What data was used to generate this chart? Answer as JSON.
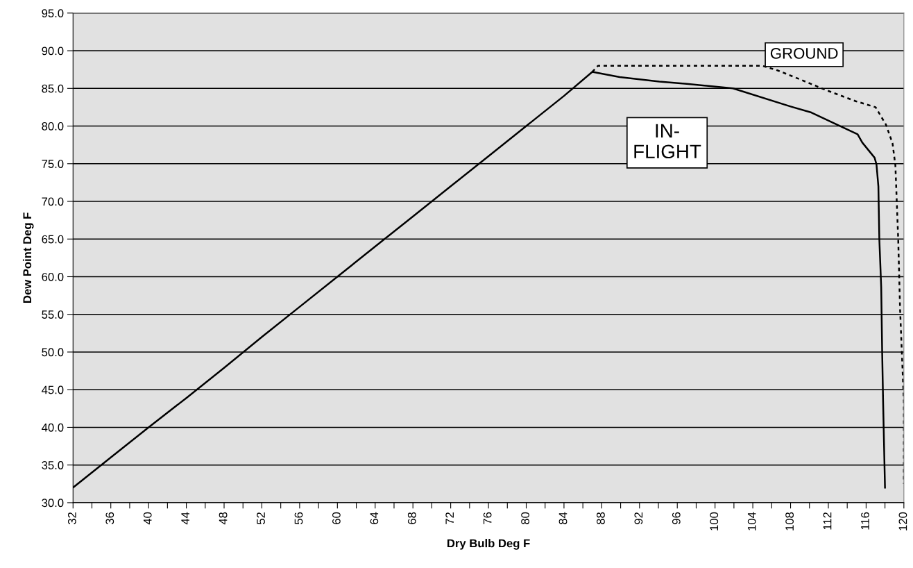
{
  "chart_data": {
    "type": "line",
    "xlabel": "Dry Bulb Deg F",
    "ylabel": "Dew Point Deg F",
    "xlim": [
      32,
      120
    ],
    "ylim": [
      30,
      95
    ],
    "xticks": [
      {
        "value": 32,
        "label": "32"
      },
      {
        "value": 34,
        "label": null
      },
      {
        "value": 36,
        "label": "36"
      },
      {
        "value": 38,
        "label": null
      },
      {
        "value": 40,
        "label": "40"
      },
      {
        "value": 42,
        "label": null
      },
      {
        "value": 44,
        "label": "44"
      },
      {
        "value": 46,
        "label": null
      },
      {
        "value": 48,
        "label": "48"
      },
      {
        "value": 50,
        "label": null
      },
      {
        "value": 52,
        "label": "52"
      },
      {
        "value": 54,
        "label": null
      },
      {
        "value": 56,
        "label": "56"
      },
      {
        "value": 58,
        "label": null
      },
      {
        "value": 60,
        "label": "60"
      },
      {
        "value": 62,
        "label": null
      },
      {
        "value": 64,
        "label": "64"
      },
      {
        "value": 66,
        "label": null
      },
      {
        "value": 68,
        "label": "68"
      },
      {
        "value": 70,
        "label": null
      },
      {
        "value": 72,
        "label": "72"
      },
      {
        "value": 74,
        "label": null
      },
      {
        "value": 76,
        "label": "76"
      },
      {
        "value": 78,
        "label": null
      },
      {
        "value": 80,
        "label": "80"
      },
      {
        "value": 82,
        "label": null
      },
      {
        "value": 84,
        "label": "84"
      },
      {
        "value": 86,
        "label": null
      },
      {
        "value": 88,
        "label": "88"
      },
      {
        "value": 90,
        "label": null
      },
      {
        "value": 92,
        "label": "92"
      },
      {
        "value": 94,
        "label": null
      },
      {
        "value": 96,
        "label": "96"
      },
      {
        "value": 98,
        "label": null
      },
      {
        "value": 100,
        "label": "100"
      },
      {
        "value": 102,
        "label": null
      },
      {
        "value": 104,
        "label": "104"
      },
      {
        "value": 106,
        "label": null
      },
      {
        "value": 108,
        "label": "108"
      },
      {
        "value": 110,
        "label": null
      },
      {
        "value": 112,
        "label": "112"
      },
      {
        "value": 114,
        "label": null
      },
      {
        "value": 116,
        "label": "116"
      },
      {
        "value": 118,
        "label": null
      },
      {
        "value": 120,
        "label": "120"
      }
    ],
    "yticks": [
      {
        "value": 30,
        "label": "30.0"
      },
      {
        "value": 35,
        "label": "35.0"
      },
      {
        "value": 40,
        "label": "40.0"
      },
      {
        "value": 45,
        "label": "45.0"
      },
      {
        "value": 50,
        "label": "50.0"
      },
      {
        "value": 55,
        "label": "55.0"
      },
      {
        "value": 60,
        "label": "60.0"
      },
      {
        "value": 65,
        "label": "65.0"
      },
      {
        "value": 70,
        "label": "70.0"
      },
      {
        "value": 75,
        "label": "75.0"
      },
      {
        "value": 80,
        "label": "80.0"
      },
      {
        "value": 85,
        "label": "85.0"
      },
      {
        "value": 90,
        "label": "90.0"
      },
      {
        "value": 95,
        "label": "95.0"
      }
    ],
    "grid": "y",
    "legend": false,
    "series": [
      {
        "name": "IN-\nFLIGHT",
        "color": "#000000",
        "line_style": "solid",
        "x": [
          32,
          36,
          40,
          44,
          48,
          52,
          56,
          60,
          64,
          68,
          72,
          76,
          80,
          84,
          87,
          89.9,
          94.1,
          97,
          101.9,
          108,
          110.2,
          112.9,
          115.1,
          115.6,
          116.9,
          117.1,
          117.3,
          117.4,
          117.6,
          117.7,
          117.8,
          118
        ],
        "values": [
          32,
          36,
          40,
          43.9,
          47.9,
          52,
          56,
          60,
          64,
          68,
          72,
          76,
          80,
          84,
          87.2,
          86.5,
          85.9,
          85.6,
          85,
          82.6,
          81.8,
          80.2,
          78.9,
          77.8,
          75.8,
          74.9,
          72,
          65,
          58.6,
          50.1,
          43.4,
          32
        ]
      },
      {
        "name": "GROUND",
        "color": "#000000",
        "line_style": "dashed",
        "x": [
          87,
          87.6,
          105,
          106.6,
          109,
          111.7,
          114.9,
          117,
          118.1,
          118.8,
          119.1,
          119.4,
          119.6,
          119.8,
          120,
          120
        ],
        "values": [
          87.2,
          88,
          88,
          87.4,
          86.2,
          84.8,
          83.3,
          82.5,
          80.2,
          77.7,
          74.8,
          65,
          55.6,
          49.5,
          43.4,
          32.5
        ]
      }
    ]
  }
}
